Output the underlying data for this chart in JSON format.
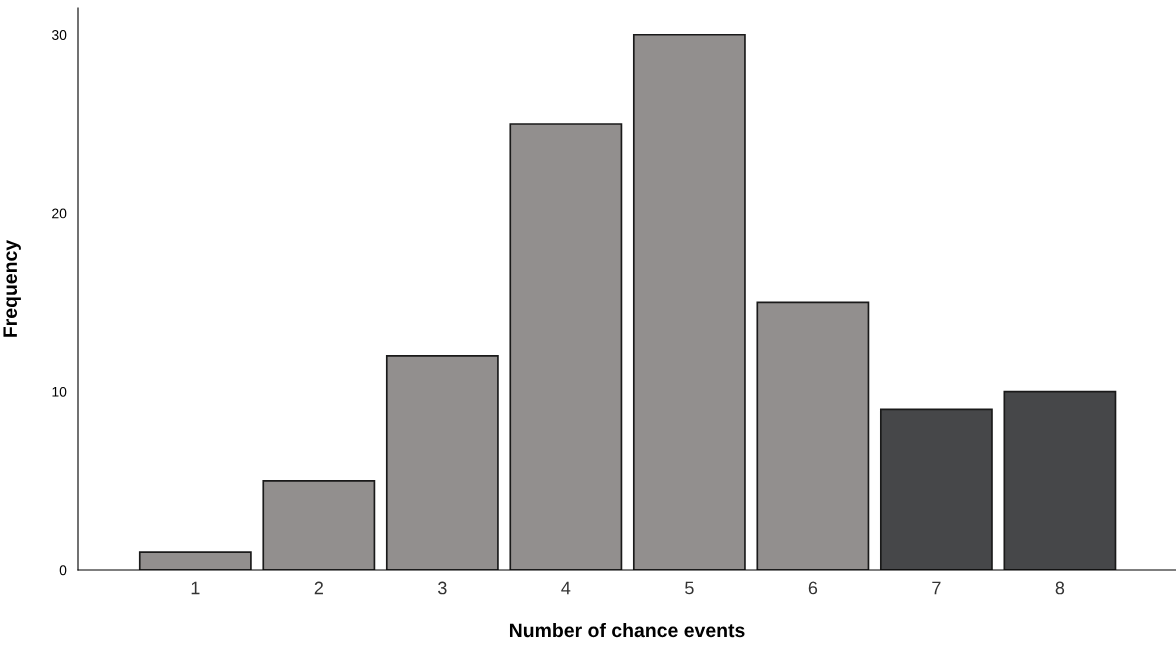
{
  "chart_data": {
    "type": "bar",
    "xlabel": "Number of chance events",
    "ylabel": "Frequency",
    "categories": [
      "1",
      "2",
      "3",
      "4",
      "5",
      "6",
      "7",
      "8"
    ],
    "values": [
      1,
      5,
      12,
      25,
      30,
      15,
      9,
      10
    ],
    "colors": [
      "#928f8e",
      "#928f8e",
      "#928f8e",
      "#928f8e",
      "#928f8e",
      "#928f8e",
      "#464749",
      "#464749"
    ],
    "ylim": [
      0,
      31.5
    ],
    "yticks": [
      0,
      10,
      20,
      30
    ],
    "grid": false
  }
}
